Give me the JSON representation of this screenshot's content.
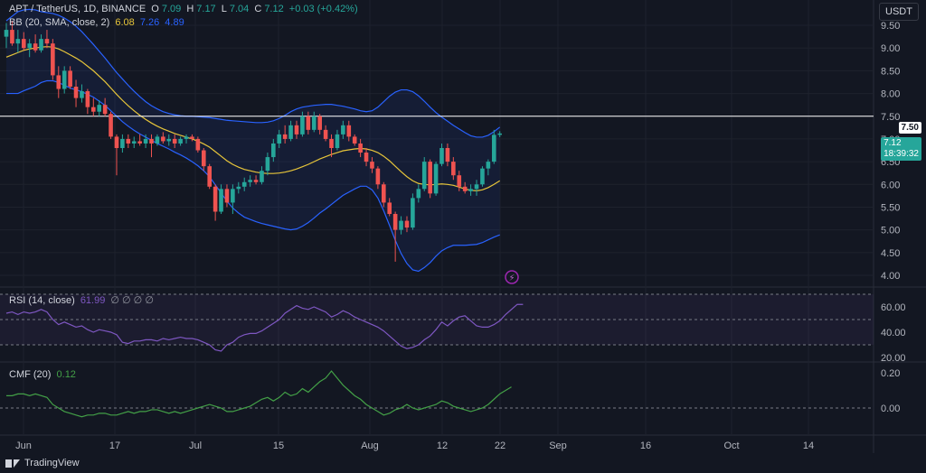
{
  "header": {
    "symbol": "APT / TetherUS, 1D, BINANCE",
    "o_label": "O",
    "o_value": "7.09",
    "h_label": "H",
    "h_value": "7.17",
    "l_label": "L",
    "l_value": "7.04",
    "c_label": "C",
    "c_value": "7.12",
    "change": "+0.03 (+0.42%)"
  },
  "bb_header": {
    "label": "BB (20, SMA, close, 2)",
    "basis": "6.08",
    "upper": "7.26",
    "lower": "4.89"
  },
  "rsi_header": {
    "label": "RSI (14, close)",
    "value": "61.99",
    "extras": "∅ ∅ ∅ ∅"
  },
  "cmf_header": {
    "label": "CMF (20)",
    "value": "0.12"
  },
  "currency": "USDT",
  "price_tag": {
    "value": "7.12",
    "countdown": "18:39:32"
  },
  "level_tag": "7.50",
  "brand": "TradingView",
  "colors": {
    "up": "#26a69a",
    "down": "#ef5350",
    "basis": "#e7c53a",
    "band": "#2962ff",
    "rsi": "#7e57c2",
    "cmf": "#43a047",
    "background": "#131722"
  },
  "chart_data": [
    {
      "type": "candlestick",
      "title": "APT / TetherUS, 1D, BINANCE",
      "x_ticks": [
        "Jun",
        "17",
        "Jul",
        "15",
        "Aug",
        "12",
        "22",
        "Sep",
        "16",
        "Oct",
        "14"
      ],
      "y_ticks": [
        "9.50",
        "9.00",
        "8.50",
        "8.00",
        "7.50",
        "7.00",
        "6.50",
        "6.00",
        "5.50",
        "5.00",
        "4.50",
        "4.00"
      ],
      "ylim": [
        3.9,
        9.8
      ],
      "horizontal_line": 7.5,
      "candles": [
        {
          "o": 9.25,
          "h": 9.55,
          "l": 9.0,
          "c": 9.4
        },
        {
          "o": 9.4,
          "h": 9.6,
          "l": 9.05,
          "c": 9.1
        },
        {
          "o": 9.1,
          "h": 9.4,
          "l": 8.9,
          "c": 9.2
        },
        {
          "o": 9.2,
          "h": 9.35,
          "l": 8.95,
          "c": 9.0
        },
        {
          "o": 9.0,
          "h": 9.2,
          "l": 8.8,
          "c": 9.1
        },
        {
          "o": 9.1,
          "h": 9.3,
          "l": 8.9,
          "c": 8.95
        },
        {
          "o": 8.95,
          "h": 9.3,
          "l": 8.9,
          "c": 9.2
        },
        {
          "o": 9.2,
          "h": 9.4,
          "l": 9.0,
          "c": 9.1
        },
        {
          "o": 9.1,
          "h": 9.2,
          "l": 8.3,
          "c": 8.4
        },
        {
          "o": 8.4,
          "h": 8.6,
          "l": 7.9,
          "c": 8.1
        },
        {
          "o": 8.1,
          "h": 8.6,
          "l": 8.0,
          "c": 8.5
        },
        {
          "o": 8.5,
          "h": 8.6,
          "l": 8.1,
          "c": 8.15
        },
        {
          "o": 8.15,
          "h": 8.3,
          "l": 7.7,
          "c": 7.9
        },
        {
          "o": 7.9,
          "h": 8.2,
          "l": 7.8,
          "c": 8.05
        },
        {
          "o": 8.05,
          "h": 8.1,
          "l": 7.55,
          "c": 7.7
        },
        {
          "o": 7.7,
          "h": 7.9,
          "l": 7.5,
          "c": 7.6
        },
        {
          "o": 7.6,
          "h": 7.85,
          "l": 7.5,
          "c": 7.75
        },
        {
          "o": 7.75,
          "h": 7.9,
          "l": 7.5,
          "c": 7.55
        },
        {
          "o": 7.55,
          "h": 7.6,
          "l": 7.0,
          "c": 7.05
        },
        {
          "o": 7.05,
          "h": 7.1,
          "l": 6.2,
          "c": 6.8
        },
        {
          "o": 6.8,
          "h": 7.1,
          "l": 6.7,
          "c": 7.0
        },
        {
          "o": 7.0,
          "h": 7.1,
          "l": 6.8,
          "c": 6.9
        },
        {
          "o": 6.9,
          "h": 7.05,
          "l": 6.8,
          "c": 6.95
        },
        {
          "o": 6.95,
          "h": 7.1,
          "l": 6.85,
          "c": 6.9
        },
        {
          "o": 6.9,
          "h": 7.1,
          "l": 6.8,
          "c": 7.0
        },
        {
          "o": 7.0,
          "h": 7.1,
          "l": 6.6,
          "c": 6.9
        },
        {
          "o": 6.9,
          "h": 7.1,
          "l": 6.85,
          "c": 7.05
        },
        {
          "o": 7.05,
          "h": 7.15,
          "l": 6.9,
          "c": 6.95
        },
        {
          "o": 6.95,
          "h": 7.1,
          "l": 6.85,
          "c": 7.0
        },
        {
          "o": 7.0,
          "h": 7.1,
          "l": 6.8,
          "c": 6.9
        },
        {
          "o": 6.9,
          "h": 7.05,
          "l": 6.85,
          "c": 7.0
        },
        {
          "o": 7.0,
          "h": 7.1,
          "l": 6.9,
          "c": 7.05
        },
        {
          "o": 7.05,
          "h": 7.1,
          "l": 6.95,
          "c": 7.0
        },
        {
          "o": 7.0,
          "h": 7.05,
          "l": 6.7,
          "c": 6.75
        },
        {
          "o": 6.75,
          "h": 6.8,
          "l": 6.3,
          "c": 6.4
        },
        {
          "o": 6.4,
          "h": 6.45,
          "l": 5.9,
          "c": 5.95
        },
        {
          "o": 5.95,
          "h": 6.0,
          "l": 5.2,
          "c": 5.4
        },
        {
          "o": 5.4,
          "h": 6.0,
          "l": 5.35,
          "c": 5.9
        },
        {
          "o": 5.9,
          "h": 6.0,
          "l": 5.5,
          "c": 5.6
        },
        {
          "o": 5.6,
          "h": 6.0,
          "l": 5.35,
          "c": 5.9
        },
        {
          "o": 5.9,
          "h": 6.05,
          "l": 5.8,
          "c": 5.95
        },
        {
          "o": 5.95,
          "h": 6.15,
          "l": 5.85,
          "c": 6.05
        },
        {
          "o": 6.05,
          "h": 6.2,
          "l": 5.95,
          "c": 6.1
        },
        {
          "o": 6.1,
          "h": 6.2,
          "l": 6.0,
          "c": 6.05
        },
        {
          "o": 6.05,
          "h": 6.4,
          "l": 6.0,
          "c": 6.3
        },
        {
          "o": 6.3,
          "h": 6.7,
          "l": 6.2,
          "c": 6.6
        },
        {
          "o": 6.6,
          "h": 7.0,
          "l": 6.5,
          "c": 6.9
        },
        {
          "o": 6.9,
          "h": 7.2,
          "l": 6.8,
          "c": 7.1
        },
        {
          "o": 7.1,
          "h": 7.3,
          "l": 6.9,
          "c": 7.0
        },
        {
          "o": 7.0,
          "h": 7.4,
          "l": 6.95,
          "c": 7.3
        },
        {
          "o": 7.3,
          "h": 7.4,
          "l": 7.0,
          "c": 7.1
        },
        {
          "o": 7.1,
          "h": 7.6,
          "l": 7.05,
          "c": 7.5
        },
        {
          "o": 7.5,
          "h": 7.6,
          "l": 7.1,
          "c": 7.2
        },
        {
          "o": 7.2,
          "h": 7.6,
          "l": 7.15,
          "c": 7.5
        },
        {
          "o": 7.5,
          "h": 7.55,
          "l": 7.1,
          "c": 7.2
        },
        {
          "o": 7.2,
          "h": 7.3,
          "l": 6.95,
          "c": 7.0
        },
        {
          "o": 7.0,
          "h": 7.1,
          "l": 6.6,
          "c": 6.8
        },
        {
          "o": 6.8,
          "h": 7.2,
          "l": 6.75,
          "c": 7.1
        },
        {
          "o": 7.1,
          "h": 7.4,
          "l": 7.0,
          "c": 7.3
        },
        {
          "o": 7.3,
          "h": 7.4,
          "l": 6.95,
          "c": 7.05
        },
        {
          "o": 7.05,
          "h": 7.1,
          "l": 6.85,
          "c": 6.9
        },
        {
          "o": 6.9,
          "h": 7.0,
          "l": 6.6,
          "c": 6.7
        },
        {
          "o": 6.7,
          "h": 6.8,
          "l": 6.4,
          "c": 6.5
        },
        {
          "o": 6.5,
          "h": 6.6,
          "l": 6.25,
          "c": 6.35
        },
        {
          "o": 6.35,
          "h": 6.4,
          "l": 5.9,
          "c": 6.0
        },
        {
          "o": 6.0,
          "h": 6.05,
          "l": 5.5,
          "c": 5.6
        },
        {
          "o": 5.6,
          "h": 5.7,
          "l": 5.3,
          "c": 5.35
        },
        {
          "o": 5.35,
          "h": 5.4,
          "l": 4.3,
          "c": 5.0
        },
        {
          "o": 5.0,
          "h": 5.3,
          "l": 4.9,
          "c": 5.2
        },
        {
          "o": 5.2,
          "h": 5.3,
          "l": 4.95,
          "c": 5.05
        },
        {
          "o": 5.05,
          "h": 5.8,
          "l": 5.0,
          "c": 5.7
        },
        {
          "o": 5.7,
          "h": 6.0,
          "l": 5.6,
          "c": 5.9
        },
        {
          "o": 5.9,
          "h": 6.6,
          "l": 5.85,
          "c": 6.5
        },
        {
          "o": 6.5,
          "h": 6.55,
          "l": 5.7,
          "c": 5.8
        },
        {
          "o": 5.8,
          "h": 6.5,
          "l": 5.75,
          "c": 6.45
        },
        {
          "o": 6.45,
          "h": 6.9,
          "l": 6.4,
          "c": 6.8
        },
        {
          "o": 6.8,
          "h": 6.9,
          "l": 6.4,
          "c": 6.5
        },
        {
          "o": 6.5,
          "h": 6.6,
          "l": 6.1,
          "c": 6.2
        },
        {
          "o": 6.2,
          "h": 6.3,
          "l": 5.85,
          "c": 5.95
        },
        {
          "o": 5.95,
          "h": 6.05,
          "l": 5.8,
          "c": 5.85
        },
        {
          "o": 5.85,
          "h": 6.0,
          "l": 5.75,
          "c": 5.9
        },
        {
          "o": 5.9,
          "h": 6.1,
          "l": 5.75,
          "c": 6.0
        },
        {
          "o": 6.0,
          "h": 6.4,
          "l": 5.95,
          "c": 6.35
        },
        {
          "o": 6.35,
          "h": 6.55,
          "l": 6.2,
          "c": 6.5
        },
        {
          "o": 6.5,
          "h": 7.2,
          "l": 6.45,
          "c": 7.09
        },
        {
          "o": 7.09,
          "h": 7.17,
          "l": 7.04,
          "c": 7.12
        }
      ],
      "bb_basis": [
        8.8,
        8.85,
        8.9,
        8.95,
        8.98,
        9.0,
        9.02,
        9.03,
        9.02,
        8.98,
        8.92,
        8.85,
        8.78,
        8.7,
        8.6,
        8.5,
        8.38,
        8.26,
        8.12,
        7.98,
        7.85,
        7.73,
        7.62,
        7.52,
        7.43,
        7.35,
        7.28,
        7.22,
        7.17,
        7.12,
        7.08,
        7.04,
        7.0,
        6.95,
        6.89,
        6.82,
        6.72,
        6.62,
        6.52,
        6.44,
        6.38,
        6.33,
        6.3,
        6.27,
        6.25,
        6.24,
        6.24,
        6.25,
        6.27,
        6.3,
        6.34,
        6.39,
        6.44,
        6.5,
        6.56,
        6.61,
        6.66,
        6.7,
        6.74,
        6.76,
        6.78,
        6.79,
        6.78,
        6.75,
        6.7,
        6.62,
        6.52,
        6.4,
        6.28,
        6.17,
        6.08,
        6.02,
        6.0,
        5.99,
        6.0,
        6.01,
        6.0,
        5.98,
        5.94,
        5.9,
        5.87,
        5.86,
        5.88,
        5.93,
        6.0,
        6.08
      ],
      "bb_upper": [
        9.6,
        9.7,
        9.8,
        9.84,
        9.85,
        9.84,
        9.8,
        9.78,
        9.76,
        9.72,
        9.66,
        9.58,
        9.48,
        9.36,
        9.22,
        9.08,
        8.93,
        8.78,
        8.62,
        8.46,
        8.32,
        8.18,
        8.05,
        7.93,
        7.82,
        7.73,
        7.66,
        7.6,
        7.56,
        7.53,
        7.51,
        7.5,
        7.5,
        7.49,
        7.48,
        7.47,
        7.45,
        7.43,
        7.41,
        7.4,
        7.39,
        7.38,
        7.37,
        7.36,
        7.36,
        7.37,
        7.4,
        7.45,
        7.52,
        7.6,
        7.66,
        7.7,
        7.72,
        7.74,
        7.75,
        7.76,
        7.76,
        7.74,
        7.72,
        7.69,
        7.66,
        7.62,
        7.6,
        7.62,
        7.7,
        7.82,
        7.94,
        8.03,
        8.08,
        8.08,
        8.04,
        7.95,
        7.83,
        7.7,
        7.58,
        7.48,
        7.39,
        7.3,
        7.22,
        7.14,
        7.07,
        7.04,
        7.04,
        7.08,
        7.16,
        7.26
      ],
      "bb_lower": [
        8.0,
        8.0,
        8.0,
        8.06,
        8.11,
        8.16,
        8.24,
        8.28,
        8.28,
        8.24,
        8.18,
        8.12,
        8.08,
        8.04,
        7.98,
        7.92,
        7.83,
        7.74,
        7.62,
        7.5,
        7.38,
        7.28,
        7.19,
        7.11,
        7.04,
        6.97,
        6.9,
        6.84,
        6.78,
        6.71,
        6.65,
        6.58,
        6.5,
        6.41,
        6.3,
        6.17,
        5.99,
        5.81,
        5.63,
        5.48,
        5.37,
        5.28,
        5.23,
        5.18,
        5.14,
        5.11,
        5.08,
        5.05,
        5.02,
        5.0,
        5.02,
        5.08,
        5.16,
        5.26,
        5.37,
        5.46,
        5.56,
        5.66,
        5.76,
        5.83,
        5.9,
        5.96,
        5.96,
        5.88,
        5.7,
        5.42,
        5.1,
        4.77,
        4.48,
        4.26,
        4.12,
        4.09,
        4.17,
        4.28,
        4.42,
        4.54,
        4.61,
        4.66,
        4.66,
        4.66,
        4.67,
        4.68,
        4.72,
        4.78,
        4.84,
        4.89
      ]
    },
    {
      "type": "line",
      "title": "RSI (14, close)",
      "y_ticks": [
        "60.00",
        "40.00",
        "20.00"
      ],
      "ylim": [
        18,
        76
      ],
      "reference_lines": [
        70,
        50,
        30
      ],
      "values": [
        55,
        56,
        54,
        56,
        55,
        56,
        58,
        56,
        50,
        46,
        48,
        46,
        44,
        45,
        42,
        40,
        42,
        41,
        40,
        38,
        32,
        31,
        33,
        33,
        34,
        34,
        33,
        35,
        34,
        35,
        36,
        35,
        35,
        34,
        32,
        30,
        26,
        25,
        30,
        32,
        36,
        38,
        39,
        39,
        41,
        44,
        47,
        50,
        55,
        58,
        61,
        59,
        58,
        60,
        58,
        56,
        52,
        54,
        57,
        55,
        52,
        50,
        48,
        46,
        44,
        41,
        37,
        33,
        29,
        27,
        28,
        30,
        34,
        37,
        42,
        48,
        45,
        49,
        52,
        53,
        49,
        45,
        44,
        44,
        46,
        49,
        54,
        58,
        62,
        61.99
      ]
    },
    {
      "type": "line",
      "title": "CMF (20)",
      "y_ticks": [
        "0.20",
        "0.00"
      ],
      "ylim": [
        -0.07,
        0.24
      ],
      "reference_lines": [
        0.0
      ],
      "values": [
        0.07,
        0.07,
        0.08,
        0.08,
        0.07,
        0.08,
        0.07,
        0.06,
        0.02,
        0.0,
        -0.02,
        -0.03,
        -0.04,
        -0.05,
        -0.04,
        -0.04,
        -0.03,
        -0.03,
        -0.04,
        -0.04,
        -0.03,
        -0.02,
        -0.03,
        -0.02,
        -0.02,
        -0.01,
        -0.01,
        -0.02,
        -0.03,
        -0.02,
        -0.03,
        -0.02,
        -0.01,
        0.0,
        0.01,
        0.02,
        0.01,
        0.0,
        -0.02,
        -0.02,
        -0.01,
        0.0,
        0.01,
        0.03,
        0.05,
        0.06,
        0.04,
        0.06,
        0.09,
        0.07,
        0.08,
        0.11,
        0.09,
        0.12,
        0.15,
        0.17,
        0.21,
        0.17,
        0.13,
        0.1,
        0.07,
        0.05,
        0.02,
        0.0,
        -0.02,
        -0.04,
        -0.03,
        -0.01,
        0.0,
        0.02,
        0.0,
        -0.01,
        0.0,
        0.01,
        0.02,
        0.04,
        0.03,
        0.01,
        0.0,
        -0.01,
        -0.02,
        -0.01,
        0.0,
        0.02,
        0.05,
        0.08,
        0.1,
        0.12
      ]
    }
  ]
}
